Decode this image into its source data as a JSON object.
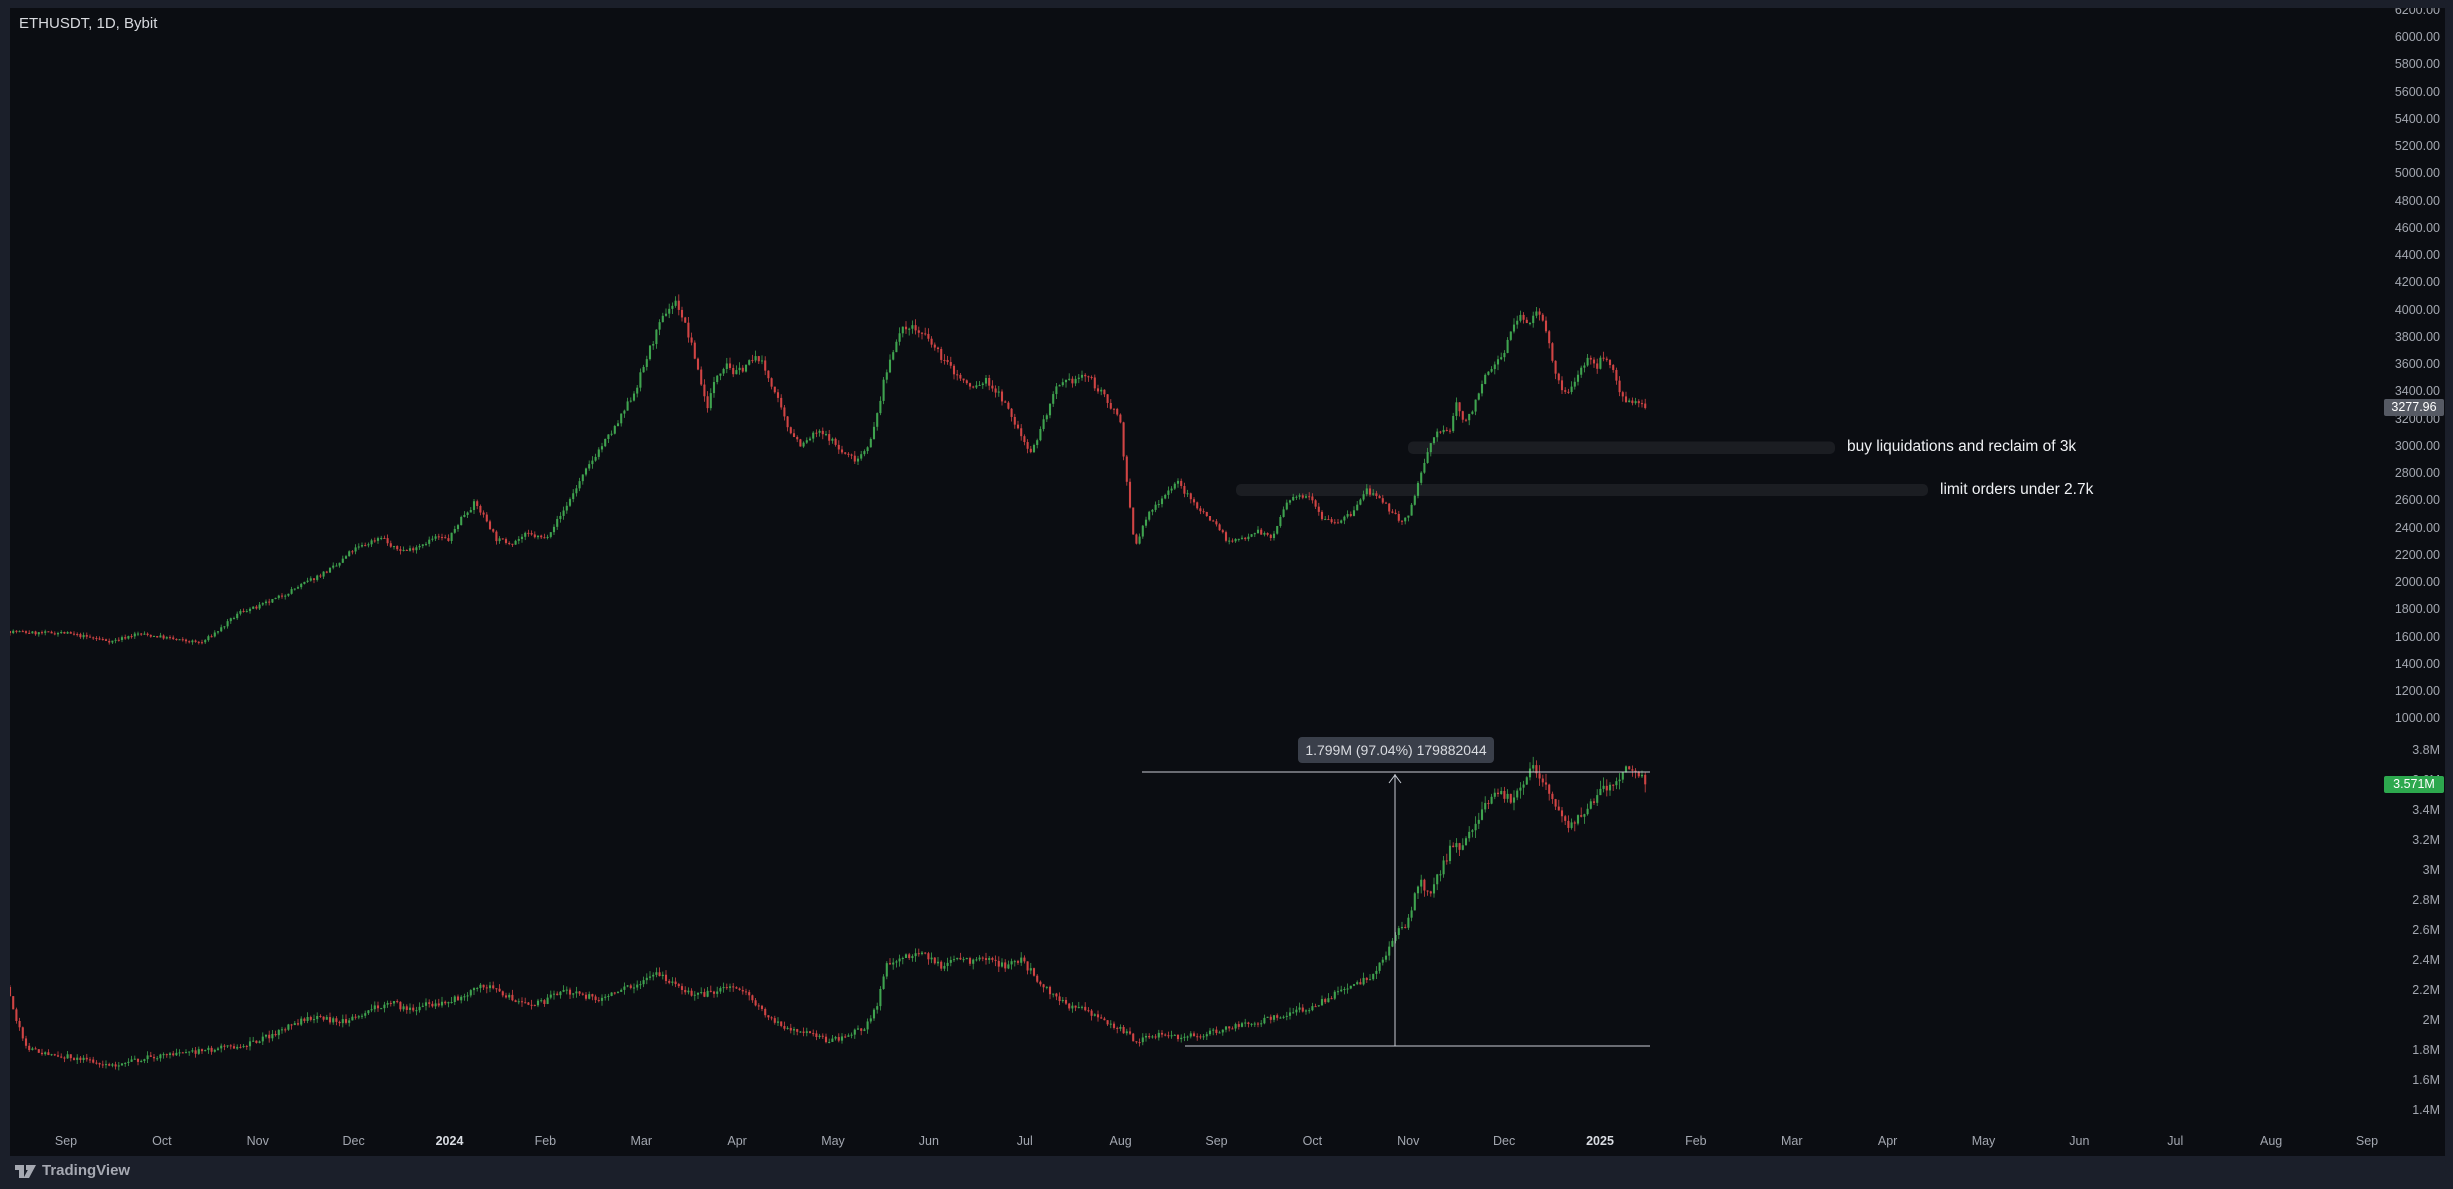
{
  "header": {
    "symbol_label": "ETHUSDT, 1D, Bybit"
  },
  "footer": {
    "logo_text": "TradingView",
    "logo_icon": "tradingview-monogram"
  },
  "colors": {
    "up": "#3fa34f",
    "down": "#d04444",
    "chart_bg": "#0b0d12",
    "frame": "#1b1f2a",
    "axis_text": "#a3a7b0",
    "tag_gray_bg": "#565a64",
    "tag_green_bg": "#2da84e",
    "measure_line": "#c8ccd4",
    "zone_band": "rgba(190,195,205,0.09)",
    "tooltip_bg": "#3a3f4a"
  },
  "annotations": {
    "reclaim_text": "buy liquidations and reclaim of 3k",
    "limit_orders_text": "limit orders under 2.7k",
    "measure_label": "1.799M (97.04%) 179882044"
  },
  "price_scale": {
    "pane1_ticks": [
      "6200.00",
      "6000.00",
      "5800.00",
      "5600.00",
      "5400.00",
      "5200.00",
      "5000.00",
      "4800.00",
      "4600.00",
      "4400.00",
      "4200.00",
      "4000.00",
      "3800.00",
      "3600.00",
      "3400.00",
      "3200.00",
      "3000.00",
      "2800.00",
      "2600.00",
      "2400.00",
      "2200.00",
      "2000.00",
      "1800.00",
      "1600.00",
      "1400.00",
      "1200.00",
      "1000.00"
    ],
    "pane1_last": {
      "label": "3277.96",
      "value": 3277.96
    },
    "pane2_ticks": [
      "3.8M",
      "3.6M",
      "3.4M",
      "3.2M",
      "3M",
      "2.8M",
      "2.6M",
      "2.4M",
      "2.2M",
      "2M",
      "1.8M",
      "1.6M",
      "1.4M"
    ],
    "pane2_last": {
      "label": "3.571M",
      "value": 3.571
    }
  },
  "time_scale": {
    "labels": [
      {
        "label": "Sep"
      },
      {
        "label": "Oct"
      },
      {
        "label": "Nov"
      },
      {
        "label": "Dec"
      },
      {
        "label": "2024",
        "bold": true
      },
      {
        "label": "Feb"
      },
      {
        "label": "Mar"
      },
      {
        "label": "Apr"
      },
      {
        "label": "May"
      },
      {
        "label": "Jun"
      },
      {
        "label": "Jul"
      },
      {
        "label": "Aug"
      },
      {
        "label": "Sep"
      },
      {
        "label": "Oct"
      },
      {
        "label": "Nov"
      },
      {
        "label": "Dec"
      },
      {
        "label": "2025",
        "bold": true
      },
      {
        "label": "Feb"
      },
      {
        "label": "Mar"
      },
      {
        "label": "Apr"
      },
      {
        "label": "May"
      },
      {
        "label": "Jun"
      },
      {
        "label": "Jul"
      },
      {
        "label": "Aug"
      },
      {
        "label": "Sep"
      }
    ]
  },
  "chart_data": [
    {
      "type": "candlestick",
      "pane": "upper",
      "symbol": "ETHUSDT",
      "interval": "1D",
      "exchange": "Bybit",
      "last_price": 3277.96,
      "y_axis": {
        "min": 1000,
        "max": 6200,
        "tick_step": 200
      },
      "x_axis": {
        "start": "Sep 2023",
        "end": "Sep 2025",
        "data_ends_near": "Jan 2025"
      },
      "grid": false,
      "zones": [
        {
          "text": "buy liquidations and reclaim of 3k",
          "price_level": 3000
        },
        {
          "text": "limit orders under 2.7k",
          "price_level": 2700
        }
      ],
      "path_anchors": [
        [
          10,
          1640
        ],
        [
          40,
          1625
        ],
        [
          66,
          1628
        ],
        [
          95,
          1590
        ],
        [
          115,
          1565
        ],
        [
          140,
          1620
        ],
        [
          162,
          1600
        ],
        [
          185,
          1570
        ],
        [
          205,
          1555
        ],
        [
          225,
          1665
        ],
        [
          245,
          1790
        ],
        [
          259,
          1810
        ],
        [
          280,
          1880
        ],
        [
          300,
          1960
        ],
        [
          320,
          2040
        ],
        [
          340,
          2120
        ],
        [
          355,
          2230
        ],
        [
          370,
          2280
        ],
        [
          385,
          2340
        ],
        [
          395,
          2250
        ],
        [
          410,
          2230
        ],
        [
          425,
          2280
        ],
        [
          440,
          2330
        ],
        [
          452,
          2310
        ],
        [
          465,
          2480
        ],
        [
          478,
          2580
        ],
        [
          490,
          2450
        ],
        [
          500,
          2310
        ],
        [
          515,
          2290
        ],
        [
          530,
          2350
        ],
        [
          548,
          2320
        ],
        [
          565,
          2500
        ],
        [
          580,
          2700
        ],
        [
          600,
          2950
        ],
        [
          620,
          3150
        ],
        [
          639,
          3420
        ],
        [
          655,
          3750
        ],
        [
          670,
          4000
        ],
        [
          680,
          4060
        ],
        [
          690,
          3850
        ],
        [
          700,
          3600
        ],
        [
          710,
          3280
        ],
        [
          720,
          3520
        ],
        [
          730,
          3620
        ],
        [
          738,
          3520
        ],
        [
          750,
          3600
        ],
        [
          762,
          3650
        ],
        [
          775,
          3450
        ],
        [
          790,
          3150
        ],
        [
          805,
          3000
        ],
        [
          820,
          3100
        ],
        [
          833,
          3060
        ],
        [
          845,
          2950
        ],
        [
          860,
          2900
        ],
        [
          875,
          3050
        ],
        [
          888,
          3500
        ],
        [
          900,
          3800
        ],
        [
          912,
          3890
        ],
        [
          930,
          3790
        ],
        [
          945,
          3650
        ],
        [
          960,
          3520
        ],
        [
          975,
          3420
        ],
        [
          990,
          3480
        ],
        [
          1005,
          3350
        ],
        [
          1024,
          3080
        ],
        [
          1035,
          2950
        ],
        [
          1045,
          3150
        ],
        [
          1060,
          3420
        ],
        [
          1075,
          3480
        ],
        [
          1090,
          3520
        ],
        [
          1105,
          3380
        ],
        [
          1123,
          3210
        ],
        [
          1130,
          2720
        ],
        [
          1138,
          2250
        ],
        [
          1150,
          2480
        ],
        [
          1165,
          2620
        ],
        [
          1180,
          2740
        ],
        [
          1192,
          2620
        ],
        [
          1205,
          2520
        ],
        [
          1220,
          2420
        ],
        [
          1232,
          2290
        ],
        [
          1245,
          2320
        ],
        [
          1260,
          2380
        ],
        [
          1275,
          2320
        ],
        [
          1290,
          2580
        ],
        [
          1302,
          2630
        ],
        [
          1313,
          2650
        ],
        [
          1325,
          2480
        ],
        [
          1340,
          2440
        ],
        [
          1355,
          2500
        ],
        [
          1370,
          2680
        ],
        [
          1382,
          2600
        ],
        [
          1395,
          2520
        ],
        [
          1405,
          2440
        ],
        [
          1412,
          2480
        ],
        [
          1420,
          2700
        ],
        [
          1428,
          2880
        ],
        [
          1436,
          3060
        ],
        [
          1444,
          3120
        ],
        [
          1452,
          3080
        ],
        [
          1460,
          3330
        ],
        [
          1468,
          3150
        ],
        [
          1476,
          3280
        ],
        [
          1484,
          3450
        ],
        [
          1495,
          3560
        ],
        [
          1506,
          3680
        ],
        [
          1515,
          3850
        ],
        [
          1524,
          3960
        ],
        [
          1532,
          3880
        ],
        [
          1540,
          4010
        ],
        [
          1548,
          3920
        ],
        [
          1556,
          3580
        ],
        [
          1564,
          3420
        ],
        [
          1572,
          3380
        ],
        [
          1580,
          3520
        ],
        [
          1590,
          3640
        ],
        [
          1600,
          3580
        ],
        [
          1608,
          3680
        ],
        [
          1616,
          3560
        ],
        [
          1624,
          3380
        ],
        [
          1632,
          3330
        ],
        [
          1640,
          3310
        ],
        [
          1648,
          3278
        ]
      ]
    },
    {
      "type": "candlestick",
      "pane": "lower",
      "unit": "M",
      "last_value": 3.571,
      "y_axis": {
        "min": 1.4,
        "max": 3.8,
        "tick_step": 0.2,
        "unit": "M"
      },
      "grid": false,
      "measurement": {
        "label": "1.799M (97.04%) 179882044",
        "range": "1.799M",
        "percent": "97.04%",
        "raw_value": "179882044"
      },
      "path_anchors": [
        [
          10,
          2.22
        ],
        [
          16,
          2.1
        ],
        [
          22,
          1.95
        ],
        [
          30,
          1.82
        ],
        [
          45,
          1.78
        ],
        [
          66,
          1.76
        ],
        [
          90,
          1.73
        ],
        [
          120,
          1.7
        ],
        [
          145,
          1.74
        ],
        [
          162,
          1.76
        ],
        [
          190,
          1.78
        ],
        [
          215,
          1.8
        ],
        [
          240,
          1.83
        ],
        [
          259,
          1.85
        ],
        [
          280,
          1.92
        ],
        [
          300,
          1.98
        ],
        [
          320,
          2.03
        ],
        [
          340,
          1.99
        ],
        [
          355,
          2.0
        ],
        [
          375,
          2.08
        ],
        [
          395,
          2.12
        ],
        [
          410,
          2.07
        ],
        [
          430,
          2.1
        ],
        [
          452,
          2.12
        ],
        [
          470,
          2.18
        ],
        [
          490,
          2.23
        ],
        [
          510,
          2.16
        ],
        [
          530,
          2.11
        ],
        [
          548,
          2.12
        ],
        [
          565,
          2.2
        ],
        [
          585,
          2.16
        ],
        [
          605,
          2.14
        ],
        [
          625,
          2.2
        ],
        [
          639,
          2.24
        ],
        [
          655,
          2.31
        ],
        [
          670,
          2.28
        ],
        [
          685,
          2.2
        ],
        [
          700,
          2.16
        ],
        [
          720,
          2.19
        ],
        [
          738,
          2.22
        ],
        [
          755,
          2.14
        ],
        [
          775,
          2.0
        ],
        [
          795,
          1.93
        ],
        [
          815,
          1.9
        ],
        [
          833,
          1.86
        ],
        [
          850,
          1.9
        ],
        [
          868,
          1.94
        ],
        [
          880,
          2.1
        ],
        [
          890,
          2.38
        ],
        [
          905,
          2.42
        ],
        [
          920,
          2.44
        ],
        [
          930,
          2.43
        ],
        [
          945,
          2.36
        ],
        [
          960,
          2.42
        ],
        [
          975,
          2.38
        ],
        [
          990,
          2.41
        ],
        [
          1005,
          2.36
        ],
        [
          1024,
          2.4
        ],
        [
          1040,
          2.28
        ],
        [
          1055,
          2.18
        ],
        [
          1070,
          2.1
        ],
        [
          1085,
          2.07
        ],
        [
          1100,
          2.03
        ],
        [
          1123,
          1.94
        ],
        [
          1140,
          1.86
        ],
        [
          1155,
          1.89
        ],
        [
          1170,
          1.91
        ],
        [
          1185,
          1.88
        ],
        [
          1200,
          1.9
        ],
        [
          1220,
          1.93
        ],
        [
          1240,
          1.96
        ],
        [
          1260,
          1.99
        ],
        [
          1280,
          2.02
        ],
        [
          1300,
          2.06
        ],
        [
          1313,
          2.08
        ],
        [
          1330,
          2.14
        ],
        [
          1345,
          2.19
        ],
        [
          1360,
          2.23
        ],
        [
          1375,
          2.3
        ],
        [
          1388,
          2.42
        ],
        [
          1395,
          2.52
        ],
        [
          1405,
          2.62
        ],
        [
          1412,
          2.66
        ],
        [
          1418,
          2.82
        ],
        [
          1425,
          2.92
        ],
        [
          1432,
          2.82
        ],
        [
          1440,
          2.96
        ],
        [
          1448,
          3.05
        ],
        [
          1456,
          3.18
        ],
        [
          1464,
          3.12
        ],
        [
          1472,
          3.26
        ],
        [
          1480,
          3.34
        ],
        [
          1490,
          3.46
        ],
        [
          1500,
          3.52
        ],
        [
          1508,
          3.5
        ],
        [
          1516,
          3.44
        ],
        [
          1524,
          3.56
        ],
        [
          1532,
          3.68
        ],
        [
          1540,
          3.66
        ],
        [
          1548,
          3.56
        ],
        [
          1556,
          3.44
        ],
        [
          1564,
          3.34
        ],
        [
          1572,
          3.3
        ],
        [
          1580,
          3.34
        ],
        [
          1590,
          3.42
        ],
        [
          1600,
          3.5
        ],
        [
          1610,
          3.56
        ],
        [
          1620,
          3.62
        ],
        [
          1630,
          3.66
        ],
        [
          1640,
          3.68
        ],
        [
          1648,
          3.571
        ]
      ]
    }
  ]
}
